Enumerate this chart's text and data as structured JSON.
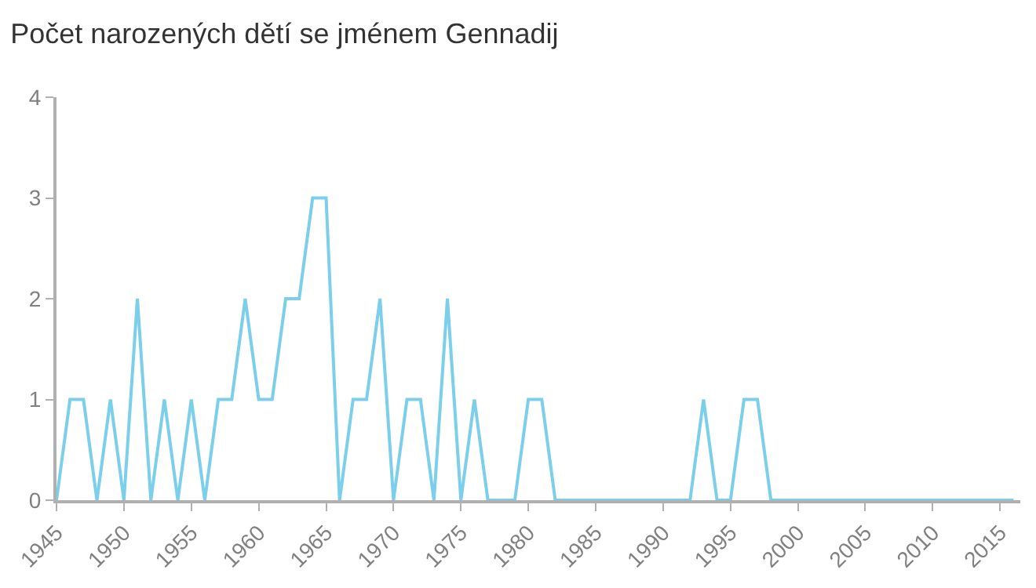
{
  "chart_data": {
    "type": "line",
    "title": "Počet narozených dětí se jménem Gennadij",
    "x": [
      1945,
      1946,
      1947,
      1948,
      1949,
      1950,
      1951,
      1952,
      1953,
      1954,
      1955,
      1956,
      1957,
      1958,
      1959,
      1960,
      1961,
      1962,
      1963,
      1964,
      1965,
      1966,
      1967,
      1968,
      1969,
      1970,
      1971,
      1972,
      1973,
      1974,
      1975,
      1976,
      1977,
      1978,
      1979,
      1980,
      1981,
      1982,
      1983,
      1984,
      1985,
      1986,
      1987,
      1988,
      1989,
      1990,
      1991,
      1992,
      1993,
      1994,
      1995,
      1996,
      1997,
      1998,
      1999,
      2000,
      2001,
      2002,
      2003,
      2004,
      2005,
      2006,
      2007,
      2008,
      2009,
      2010,
      2011,
      2012,
      2013,
      2014,
      2015,
      2016
    ],
    "series": [
      {
        "color": "#7ccfea",
        "values": [
          0,
          1,
          1,
          0,
          1,
          0,
          2,
          0,
          1,
          0,
          1,
          0,
          1,
          1,
          2,
          1,
          1,
          2,
          2,
          3,
          3,
          0,
          1,
          1,
          2,
          0,
          1,
          1,
          0,
          2,
          0,
          1,
          0,
          0,
          0,
          1,
          1,
          0,
          0,
          0,
          0,
          0,
          0,
          0,
          0,
          0,
          0,
          0,
          1,
          0,
          0,
          1,
          1,
          0,
          0,
          0,
          0,
          0,
          0,
          0,
          0,
          0,
          0,
          0,
          0,
          0,
          0,
          0,
          0,
          0,
          0,
          0
        ]
      }
    ],
    "xlim": [
      1945,
      2016.5
    ],
    "xticks": [
      1945,
      1950,
      1955,
      1960,
      1965,
      1970,
      1975,
      1980,
      1985,
      1990,
      1995,
      2000,
      2005,
      2010,
      2015
    ],
    "ylim": [
      0,
      4
    ],
    "yticks": [
      0,
      1,
      2,
      3,
      4
    ],
    "marker": "none",
    "line_style": "solid"
  }
}
